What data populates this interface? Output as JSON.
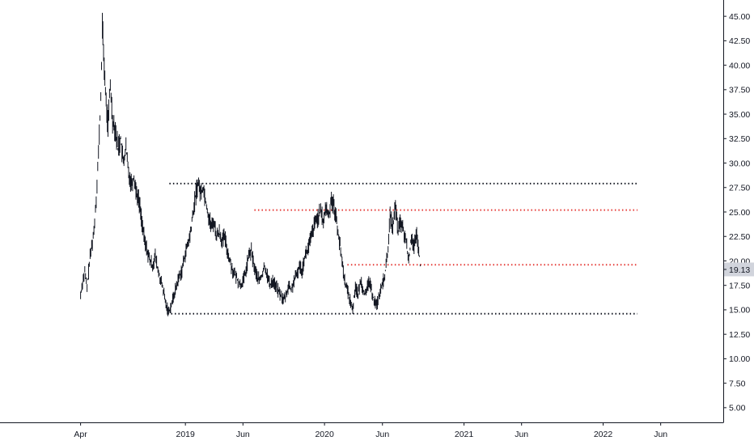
{
  "chart_data": {
    "type": "line",
    "title": "",
    "xlabel": "",
    "ylabel": "",
    "ylim": [
      3.5,
      46.5
    ],
    "y_ticks": [
      "45.00",
      "42.50",
      "40.00",
      "37.50",
      "35.00",
      "32.50",
      "30.00",
      "27.50",
      "25.00",
      "22.50",
      "20.00",
      "17.50",
      "15.00",
      "12.50",
      "10.00",
      "7.50",
      "5.00"
    ],
    "x_ticks": [
      "Apr",
      "2019",
      "Jun",
      "2020",
      "Jun",
      "2021",
      "Jun",
      "2022",
      "Jun"
    ],
    "x_tick_dates": [
      "2018-04-01",
      "2019-01-01",
      "2019-06-01",
      "2020-01-01",
      "2020-06-01",
      "2021-01-01",
      "2021-06-01",
      "2022-01-01",
      "2022-06-01"
    ],
    "xlim": [
      "2018-03-01",
      "2022-09-01"
    ],
    "last_price": "19.13",
    "series": [
      {
        "values_by_date": [
          [
            "2018-04-01",
            16.5
          ],
          [
            "2018-04-06",
            17.8
          ],
          [
            "2018-04-12",
            18.9
          ],
          [
            "2018-04-18",
            17.2
          ],
          [
            "2018-04-24",
            19.8
          ],
          [
            "2018-04-30",
            21.5
          ],
          [
            "2018-05-06",
            23.0
          ],
          [
            "2018-05-12",
            26.5
          ],
          [
            "2018-05-18",
            31.0
          ],
          [
            "2018-05-24",
            36.5
          ],
          [
            "2018-05-28",
            44.0
          ],
          [
            "2018-06-02",
            40.0
          ],
          [
            "2018-06-07",
            36.0
          ],
          [
            "2018-06-12",
            34.0
          ],
          [
            "2018-06-18",
            38.0
          ],
          [
            "2018-06-24",
            34.5
          ],
          [
            "2018-07-01",
            33.5
          ],
          [
            "2018-07-08",
            31.5
          ],
          [
            "2018-07-15",
            32.5
          ],
          [
            "2018-07-22",
            30.0
          ],
          [
            "2018-07-29",
            31.5
          ],
          [
            "2018-08-05",
            29.0
          ],
          [
            "2018-08-12",
            28.0
          ],
          [
            "2018-08-19",
            28.5
          ],
          [
            "2018-08-26",
            27.0
          ],
          [
            "2018-09-02",
            26.0
          ],
          [
            "2018-09-09",
            24.0
          ],
          [
            "2018-09-16",
            22.0
          ],
          [
            "2018-09-23",
            21.0
          ],
          [
            "2018-09-30",
            20.0
          ],
          [
            "2018-10-07",
            19.5
          ],
          [
            "2018-10-14",
            20.5
          ],
          [
            "2018-10-21",
            19.0
          ],
          [
            "2018-10-28",
            18.0
          ],
          [
            "2018-11-04",
            17.0
          ],
          [
            "2018-11-11",
            15.5
          ],
          [
            "2018-11-18",
            14.8
          ],
          [
            "2018-11-25",
            15.5
          ],
          [
            "2018-12-02",
            16.5
          ],
          [
            "2018-12-09",
            17.5
          ],
          [
            "2018-12-16",
            18.5
          ],
          [
            "2018-12-23",
            19.0
          ],
          [
            "2018-12-30",
            20.5
          ],
          [
            "2019-01-06",
            21.5
          ],
          [
            "2019-01-13",
            22.5
          ],
          [
            "2019-01-20",
            24.5
          ],
          [
            "2019-01-27",
            26.5
          ],
          [
            "2019-02-03",
            28.0
          ],
          [
            "2019-02-10",
            27.0
          ],
          [
            "2019-02-17",
            27.5
          ],
          [
            "2019-02-24",
            26.0
          ],
          [
            "2019-03-03",
            24.5
          ],
          [
            "2019-03-10",
            23.5
          ],
          [
            "2019-03-17",
            24.0
          ],
          [
            "2019-03-24",
            22.5
          ],
          [
            "2019-03-31",
            23.0
          ],
          [
            "2019-04-07",
            22.0
          ],
          [
            "2019-04-14",
            22.5
          ],
          [
            "2019-04-21",
            21.0
          ],
          [
            "2019-04-28",
            20.0
          ],
          [
            "2019-05-05",
            19.0
          ],
          [
            "2019-05-12",
            18.5
          ],
          [
            "2019-05-19",
            18.0
          ],
          [
            "2019-05-26",
            17.5
          ],
          [
            "2019-06-02",
            18.0
          ],
          [
            "2019-06-09",
            19.0
          ],
          [
            "2019-06-16",
            20.5
          ],
          [
            "2019-06-23",
            21.0
          ],
          [
            "2019-06-30",
            19.5
          ],
          [
            "2019-07-07",
            18.5
          ],
          [
            "2019-07-14",
            18.0
          ],
          [
            "2019-07-21",
            18.5
          ],
          [
            "2019-07-28",
            19.5
          ],
          [
            "2019-08-04",
            18.5
          ],
          [
            "2019-08-11",
            17.5
          ],
          [
            "2019-08-18",
            18.0
          ],
          [
            "2019-08-25",
            17.5
          ],
          [
            "2019-09-01",
            17.0
          ],
          [
            "2019-09-08",
            16.5
          ],
          [
            "2019-09-15",
            16.0
          ],
          [
            "2019-09-22",
            16.5
          ],
          [
            "2019-09-29",
            17.5
          ],
          [
            "2019-10-06",
            17.0
          ],
          [
            "2019-10-13",
            18.0
          ],
          [
            "2019-10-20",
            18.5
          ],
          [
            "2019-10-27",
            19.5
          ],
          [
            "2019-11-03",
            19.0
          ],
          [
            "2019-11-10",
            20.5
          ],
          [
            "2019-11-17",
            21.0
          ],
          [
            "2019-11-24",
            22.0
          ],
          [
            "2019-12-01",
            23.0
          ],
          [
            "2019-12-08",
            24.0
          ],
          [
            "2019-12-15",
            24.5
          ],
          [
            "2019-12-22",
            25.0
          ],
          [
            "2019-12-29",
            24.0
          ],
          [
            "2020-01-05",
            25.5
          ],
          [
            "2020-01-12",
            24.5
          ],
          [
            "2020-01-19",
            26.5
          ],
          [
            "2020-01-26",
            25.5
          ],
          [
            "2020-02-02",
            24.0
          ],
          [
            "2020-02-09",
            22.0
          ],
          [
            "2020-02-16",
            20.0
          ],
          [
            "2020-02-23",
            18.0
          ],
          [
            "2020-03-01",
            17.0
          ],
          [
            "2020-03-08",
            16.0
          ],
          [
            "2020-03-15",
            15.0
          ],
          [
            "2020-03-22",
            17.5
          ],
          [
            "2020-03-29",
            16.5
          ],
          [
            "2020-04-05",
            18.0
          ],
          [
            "2020-04-12",
            17.0
          ],
          [
            "2020-04-19",
            16.5
          ],
          [
            "2020-04-26",
            18.0
          ],
          [
            "2020-05-03",
            17.0
          ],
          [
            "2020-05-10",
            16.0
          ],
          [
            "2020-05-17",
            15.5
          ],
          [
            "2020-05-24",
            16.5
          ],
          [
            "2020-05-31",
            17.5
          ],
          [
            "2020-06-07",
            18.5
          ],
          [
            "2020-06-14",
            20.5
          ],
          [
            "2020-06-21",
            24.5
          ],
          [
            "2020-06-28",
            23.5
          ],
          [
            "2020-07-05",
            25.5
          ],
          [
            "2020-07-12",
            23.0
          ],
          [
            "2020-07-19",
            24.0
          ],
          [
            "2020-07-26",
            23.0
          ],
          [
            "2020-08-02",
            22.0
          ],
          [
            "2020-08-09",
            20.0
          ],
          [
            "2020-08-16",
            22.5
          ],
          [
            "2020-08-23",
            21.5
          ],
          [
            "2020-08-30",
            22.5
          ],
          [
            "2020-09-06",
            20.5
          ],
          [
            "2020-09-10",
            18.5
          ]
        ]
      }
    ],
    "horizontal_levels": [
      {
        "value": 27.9,
        "from": "2018-11-20",
        "to": "2022-04-01",
        "color": "#131722"
      },
      {
        "value": 25.2,
        "from": "2019-07-01",
        "to": "2022-04-01",
        "color": "#e53935"
      },
      {
        "value": 19.6,
        "from": "2020-03-01",
        "to": "2022-04-01",
        "color": "#e53935"
      },
      {
        "value": 14.6,
        "from": "2018-11-15",
        "to": "2022-04-01",
        "color": "#131722"
      }
    ],
    "grid": false,
    "colors": {
      "line": "#131722",
      "axis": "#131722",
      "badge": "#d1d4dc"
    }
  }
}
